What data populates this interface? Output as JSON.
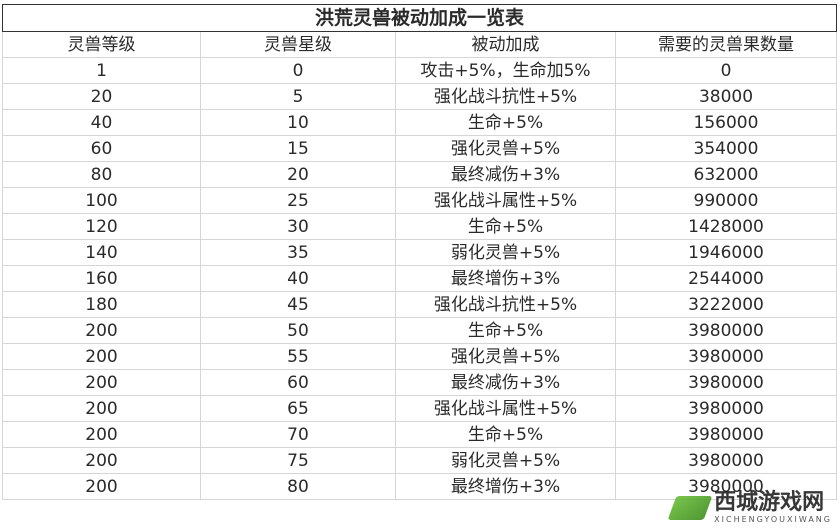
{
  "title": "洪荒灵兽被动加成一览表",
  "headers": [
    "灵兽等级",
    "灵兽星级",
    "被动加成",
    "需要的灵兽果数量"
  ],
  "rows": [
    [
      "1",
      "0",
      "攻击+5%，生命加5%",
      "0"
    ],
    [
      "20",
      "5",
      "强化战斗抗性+5%",
      "38000"
    ],
    [
      "40",
      "10",
      "生命+5%",
      "156000"
    ],
    [
      "60",
      "15",
      "强化灵兽+5%",
      "354000"
    ],
    [
      "80",
      "20",
      "最终减伤+3%",
      "632000"
    ],
    [
      "100",
      "25",
      "强化战斗属性+5%",
      "990000"
    ],
    [
      "120",
      "30",
      "生命+5%",
      "1428000"
    ],
    [
      "140",
      "35",
      "弱化灵兽+5%",
      "1946000"
    ],
    [
      "160",
      "40",
      "最终增伤+3%",
      "2544000"
    ],
    [
      "180",
      "45",
      "强化战斗抗性+5%",
      "3222000"
    ],
    [
      "200",
      "50",
      "生命+5%",
      "3980000"
    ],
    [
      "200",
      "55",
      "强化灵兽+5%",
      "3980000"
    ],
    [
      "200",
      "60",
      "最终减伤+3%",
      "3980000"
    ],
    [
      "200",
      "65",
      "强化战斗属性+5%",
      "3980000"
    ],
    [
      "200",
      "70",
      "生命+5%",
      "3980000"
    ],
    [
      "200",
      "75",
      "弱化灵兽+5%",
      "3980000"
    ],
    [
      "200",
      "80",
      "最终增伤+3%",
      "3980000"
    ]
  ],
  "watermark": {
    "text": "西城游戏网",
    "sub": "XICHENGYOUXIWANG"
  }
}
